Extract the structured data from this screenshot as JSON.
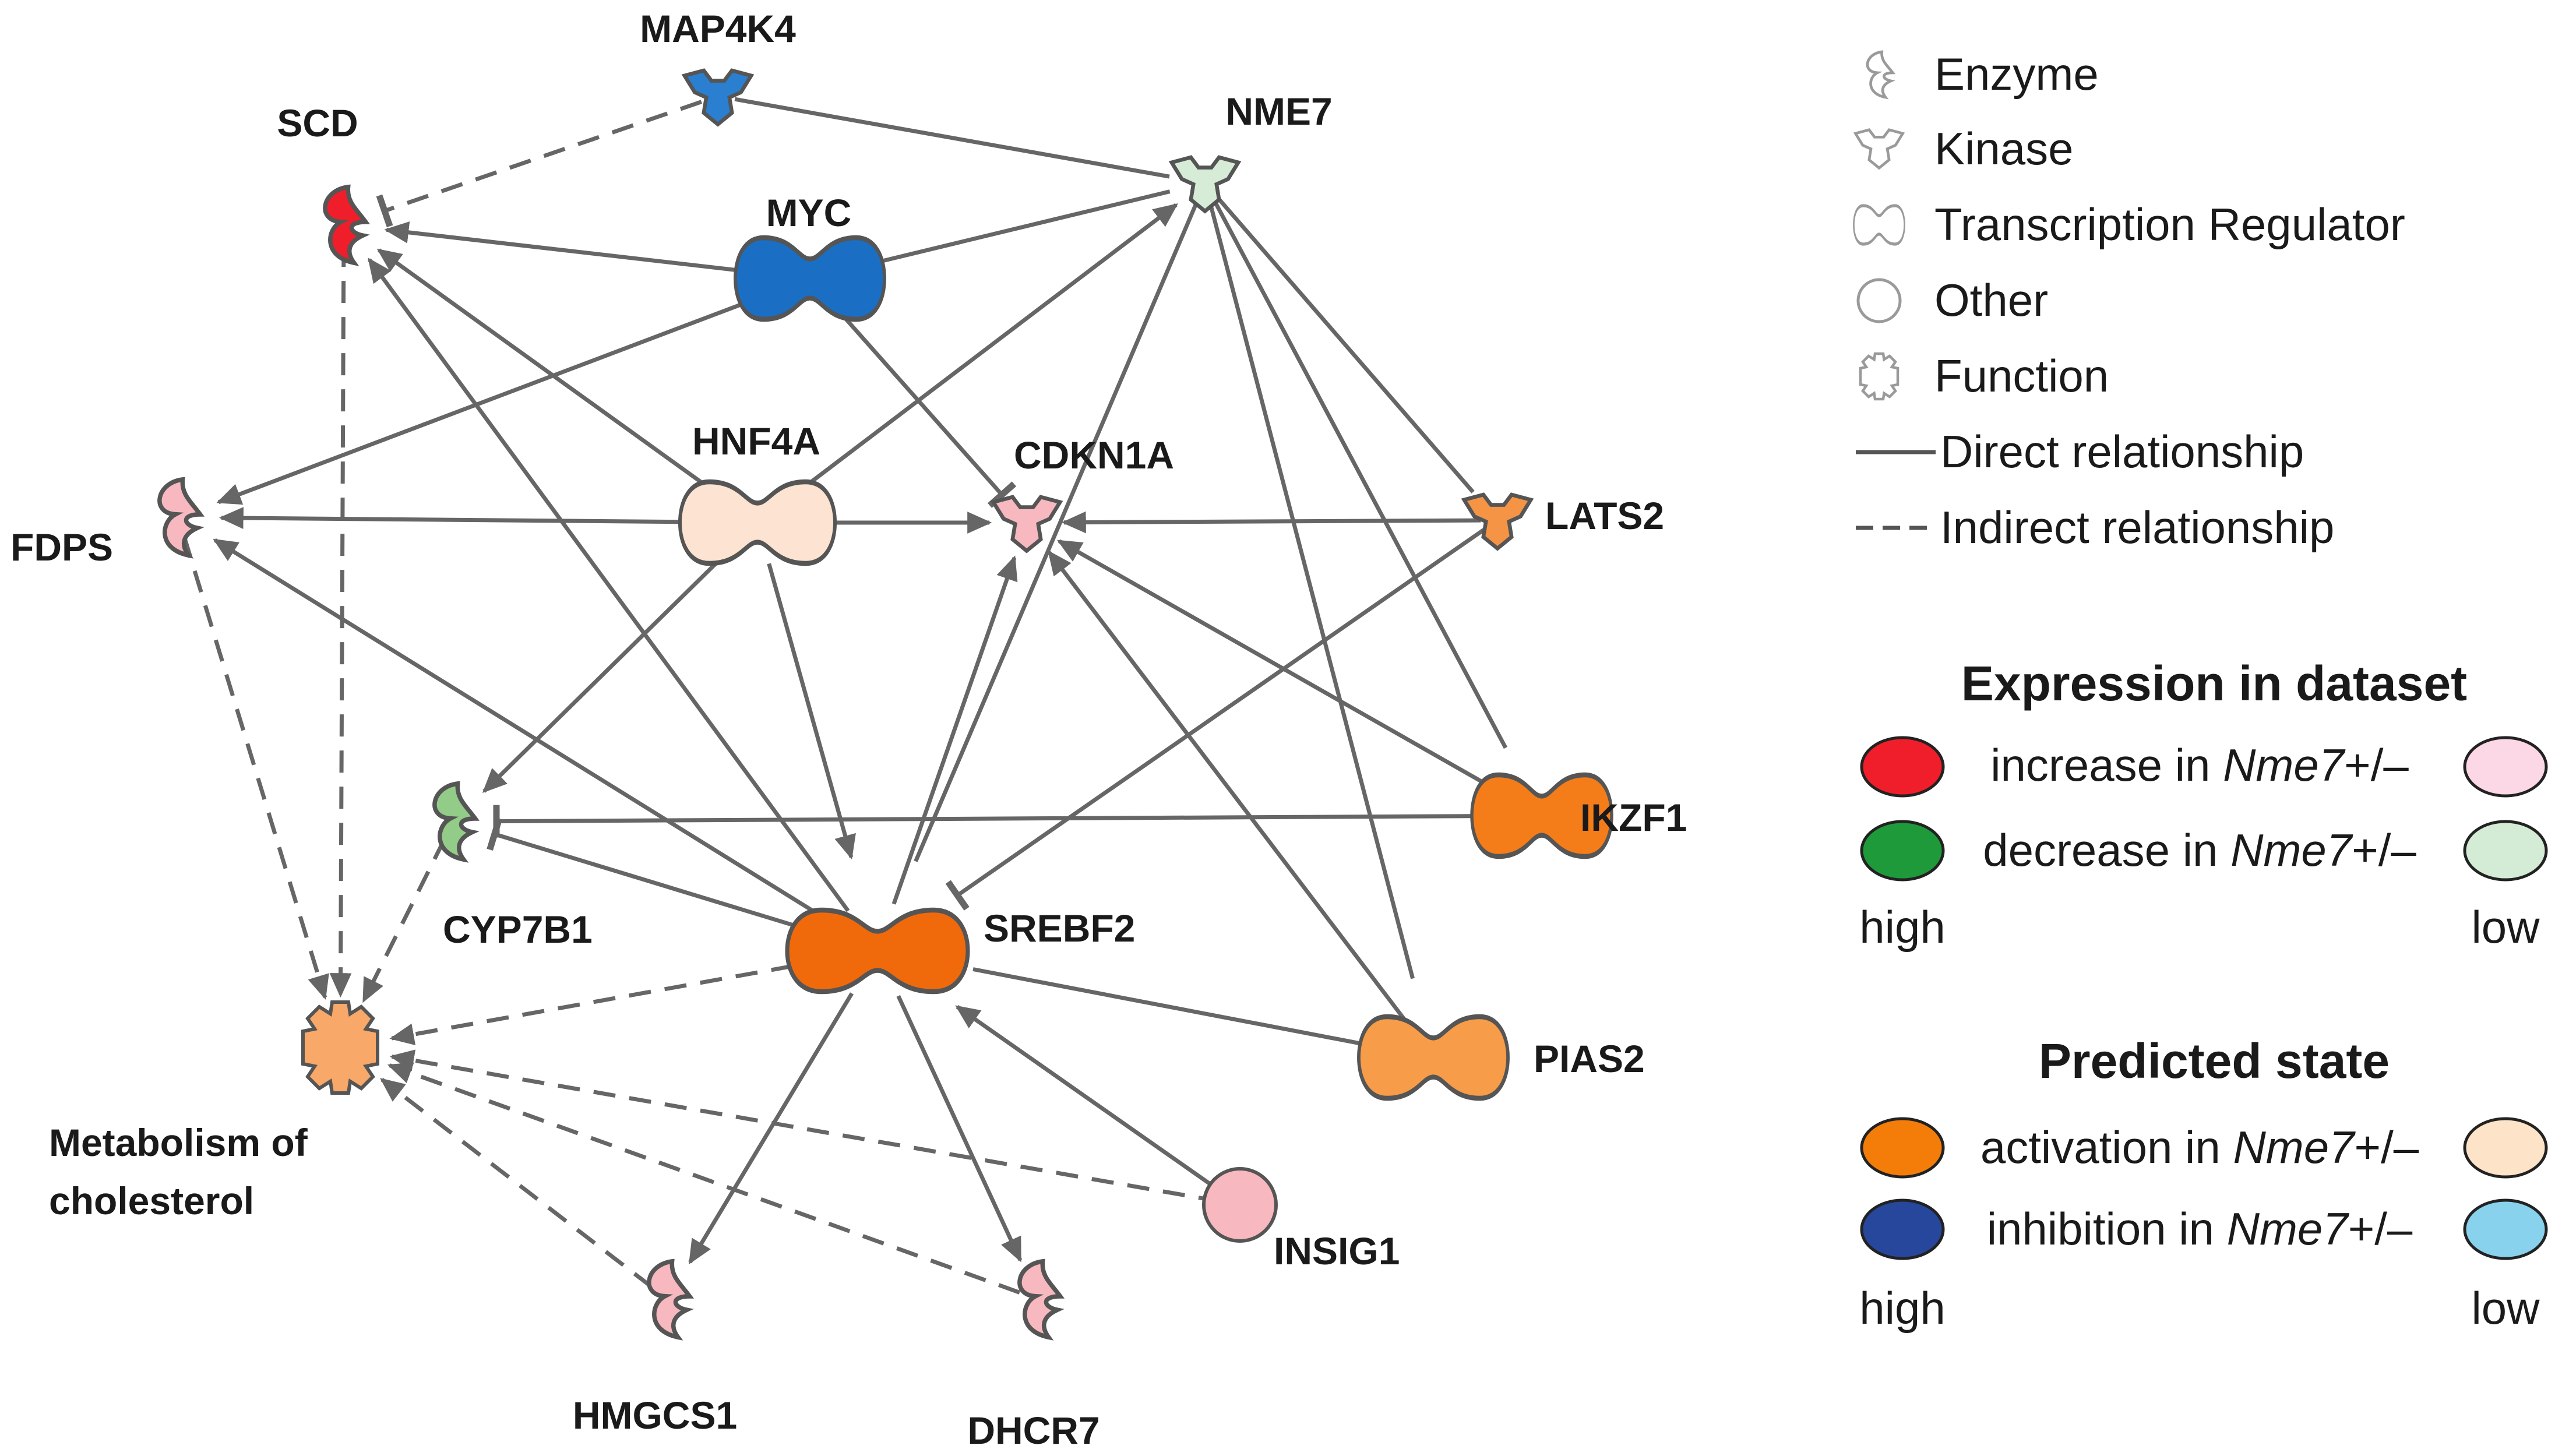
{
  "nodes": [
    {
      "id": "MAP4K4",
      "label": "MAP4K4",
      "type": "kinase",
      "color": "#2a7fd0"
    },
    {
      "id": "SCD",
      "label": "SCD",
      "type": "enzyme",
      "color": "#f01e2a"
    },
    {
      "id": "NME7",
      "label": "NME7",
      "type": "kinase",
      "color": "#d6ecd6"
    },
    {
      "id": "MYC",
      "label": "MYC",
      "type": "transcription-regulator",
      "color": "#1a6fc4"
    },
    {
      "id": "HNF4A",
      "label": "HNF4A",
      "type": "transcription-regulator",
      "color": "#fde3d2"
    },
    {
      "id": "CDKN1A",
      "label": "CDKN1A",
      "type": "kinase",
      "color": "#f7b9bf"
    },
    {
      "id": "FDPS",
      "label": "FDPS",
      "type": "enzyme",
      "color": "#f7b9bf"
    },
    {
      "id": "LATS2",
      "label": "LATS2",
      "type": "kinase",
      "color": "#f59445"
    },
    {
      "id": "CYP7B1",
      "label": "CYP7B1",
      "type": "enzyme",
      "color": "#93cc88"
    },
    {
      "id": "IKZF1",
      "label": "IKZF1",
      "type": "transcription-regulator",
      "color": "#f47d1a"
    },
    {
      "id": "SREBF2",
      "label": "SREBF2",
      "type": "transcription-regulator",
      "color": "#f06a0c"
    },
    {
      "id": "PIAS2",
      "label": "PIAS2",
      "type": "transcription-regulator",
      "color": "#f79c48"
    },
    {
      "id": "CHOL",
      "label": "Metabolism of cholesterol",
      "label_lines": [
        "Metabolism of",
        "cholesterol"
      ],
      "type": "function",
      "color": "#f8a868"
    },
    {
      "id": "INSIG1",
      "label": "INSIG1",
      "type": "other",
      "color": "#f7b9bf"
    },
    {
      "id": "HMGCS1",
      "label": "HMGCS1",
      "type": "enzyme",
      "color": "#f7b9bf"
    },
    {
      "id": "DHCR7",
      "label": "DHCR7",
      "type": "enzyme",
      "color": "#f7b9bf"
    }
  ],
  "edges": [
    {
      "from": "MAP4K4",
      "to": "SCD",
      "kind": "indirect",
      "end": "inhibit"
    },
    {
      "from": "MAP4K4",
      "to": "NME7",
      "kind": "direct",
      "end": "none"
    },
    {
      "from": "MYC",
      "to": "SCD",
      "kind": "direct",
      "end": "arrow"
    },
    {
      "from": "MYC",
      "to": "NME7",
      "kind": "direct",
      "end": "none"
    },
    {
      "from": "MYC",
      "to": "FDPS",
      "kind": "direct",
      "end": "arrow"
    },
    {
      "from": "MYC",
      "to": "CDKN1A",
      "kind": "direct",
      "end": "inhibit"
    },
    {
      "from": "HNF4A",
      "to": "SCD",
      "kind": "direct",
      "end": "arrow"
    },
    {
      "from": "HNF4A",
      "to": "NME7",
      "kind": "direct",
      "end": "arrow"
    },
    {
      "from": "HNF4A",
      "to": "FDPS",
      "kind": "direct",
      "end": "arrow"
    },
    {
      "from": "HNF4A",
      "to": "CDKN1A",
      "kind": "direct",
      "end": "arrow"
    },
    {
      "from": "HNF4A",
      "to": "CYP7B1",
      "kind": "direct",
      "end": "arrow"
    },
    {
      "from": "HNF4A",
      "to": "SREBF2",
      "kind": "direct",
      "end": "arrow"
    },
    {
      "from": "NME7",
      "to": "LATS2",
      "kind": "direct",
      "end": "none"
    },
    {
      "from": "NME7",
      "to": "IKZF1",
      "kind": "direct",
      "end": "none"
    },
    {
      "from": "NME7",
      "to": "PIAS2",
      "kind": "direct",
      "end": "none"
    },
    {
      "from": "NME7",
      "to": "SREBF2",
      "kind": "direct",
      "end": "none"
    },
    {
      "from": "LATS2",
      "to": "CDKN1A",
      "kind": "direct",
      "end": "arrow"
    },
    {
      "from": "LATS2",
      "to": "SREBF2",
      "kind": "direct",
      "end": "inhibit"
    },
    {
      "from": "IKZF1",
      "to": "CDKN1A",
      "kind": "direct",
      "end": "arrow"
    },
    {
      "from": "IKZF1",
      "to": "CYP7B1",
      "kind": "direct",
      "end": "inhibit"
    },
    {
      "from": "PIAS2",
      "to": "CDKN1A",
      "kind": "direct",
      "end": "arrow"
    },
    {
      "from": "PIAS2",
      "to": "SREBF2",
      "kind": "direct",
      "end": "none"
    },
    {
      "from": "SREBF2",
      "to": "SCD",
      "kind": "direct",
      "end": "arrow"
    },
    {
      "from": "SREBF2",
      "to": "FDPS",
      "kind": "direct",
      "end": "arrow"
    },
    {
      "from": "SREBF2",
      "to": "CDKN1A",
      "kind": "direct",
      "end": "arrow"
    },
    {
      "from": "SREBF2",
      "to": "CYP7B1",
      "kind": "direct",
      "end": "inhibit"
    },
    {
      "from": "SREBF2",
      "to": "HMGCS1",
      "kind": "direct",
      "end": "arrow"
    },
    {
      "from": "SREBF2",
      "to": "DHCR7",
      "kind": "direct",
      "end": "arrow"
    },
    {
      "from": "INSIG1",
      "to": "SREBF2",
      "kind": "direct",
      "end": "arrow"
    },
    {
      "from": "SREBF2",
      "to": "CHOL",
      "kind": "indirect",
      "end": "arrow"
    },
    {
      "from": "SCD",
      "to": "CHOL",
      "kind": "indirect",
      "end": "arrow"
    },
    {
      "from": "FDPS",
      "to": "CHOL",
      "kind": "indirect",
      "end": "arrow"
    },
    {
      "from": "CYP7B1",
      "to": "CHOL",
      "kind": "indirect",
      "end": "arrow"
    },
    {
      "from": "INSIG1",
      "to": "CHOL",
      "kind": "indirect",
      "end": "arrow"
    },
    {
      "from": "HMGCS1",
      "to": "CHOL",
      "kind": "indirect",
      "end": "arrow"
    },
    {
      "from": "DHCR7",
      "to": "CHOL",
      "kind": "indirect",
      "end": "arrow"
    }
  ],
  "legend": {
    "shapes": [
      {
        "icon": "enzyme-icon",
        "label": "Enzyme"
      },
      {
        "icon": "kinase-icon",
        "label": "Kinase"
      },
      {
        "icon": "transcription-regulator-icon",
        "label": "Transcription Regulator"
      },
      {
        "icon": "other-icon",
        "label": "Other"
      },
      {
        "icon": "function-icon",
        "label": "Function"
      },
      {
        "icon": "solid-line-icon",
        "label": "Direct relationship"
      },
      {
        "icon": "dashed-line-icon",
        "label": "Indirect relationship"
      }
    ],
    "expression": {
      "title": "Expression in dataset",
      "rows": [
        {
          "prefix": "increase in ",
          "gene": "Nme7",
          "suffix": "+/–",
          "high_color": "#f01e2a",
          "low_color": "#fcd7e6"
        },
        {
          "prefix": "decrease in ",
          "gene": "Nme7",
          "suffix": "+/–",
          "high_color": "#1e9a3a",
          "low_color": "#d4ecd6"
        }
      ],
      "high_label": "high",
      "low_label": "low"
    },
    "predicted": {
      "title": "Predicted state",
      "rows": [
        {
          "prefix": "activation in ",
          "gene": "Nme7",
          "suffix": "+/–",
          "high_color": "#f47d0a",
          "low_color": "#fde3c8"
        },
        {
          "prefix": "inhibition in ",
          "gene": "Nme7",
          "suffix": "+/–",
          "high_color": "#27479c",
          "low_color": "#88d2ee"
        }
      ],
      "high_label": "high",
      "low_label": "low"
    }
  }
}
